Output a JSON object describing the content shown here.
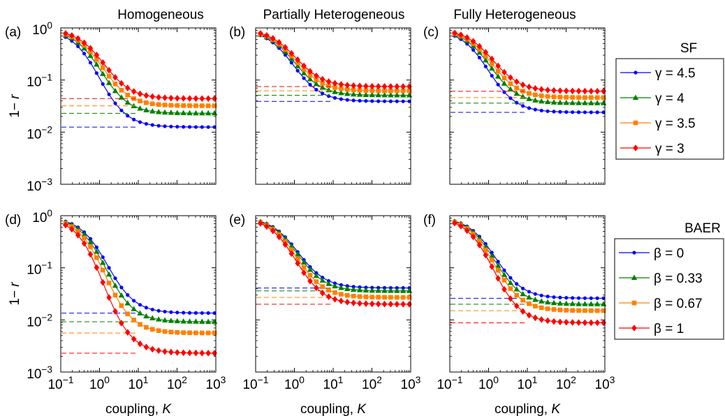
{
  "figure": {
    "column_titles": [
      "Homogeneous",
      "Partially Heterogeneous",
      "Fully Heterogeneous"
    ],
    "ylabel_prefix": "1− ",
    "ylabel_var": "r",
    "xlabel_prefix": "coupling, ",
    "xlabel_var": "K"
  },
  "legends": [
    {
      "title": "SF",
      "symbol": "γ",
      "entries": [
        {
          "label": "= 4.5",
          "color": "#0000ff",
          "marker": "dot"
        },
        {
          "label": "= 4",
          "color": "#008000",
          "marker": "triangle"
        },
        {
          "label": "= 3.5",
          "color": "#ff8000",
          "marker": "square"
        },
        {
          "label": "= 3",
          "color": "#ff0000",
          "marker": "diamond"
        }
      ]
    },
    {
      "title": "BAER",
      "symbol": "β",
      "entries": [
        {
          "label": "= 0",
          "color": "#0000ff",
          "marker": "dot"
        },
        {
          "label": "= 0.33",
          "color": "#008000",
          "marker": "triangle"
        },
        {
          "label": "= 0.67",
          "color": "#ff8000",
          "marker": "square"
        },
        {
          "label": "= 1",
          "color": "#ff0000",
          "marker": "diamond"
        }
      ]
    }
  ],
  "chart_data": [
    {
      "type": "line",
      "panel_label": "(a)",
      "xscale": "log",
      "yscale": "log",
      "xlim": [
        0.1,
        1000
      ],
      "ylim": [
        0.001,
        1
      ],
      "series": [
        {
          "name": "γ = 4.5",
          "color": "#0000ff",
          "marker": "dot",
          "midpoint": 1.0,
          "plateau": 0.0125
        },
        {
          "name": "γ = 4",
          "color": "#008000",
          "marker": "triangle",
          "midpoint": 1.1,
          "plateau": 0.023
        },
        {
          "name": "γ = 3.5",
          "color": "#ff8000",
          "marker": "square",
          "midpoint": 1.2,
          "plateau": 0.032
        },
        {
          "name": "γ = 3",
          "color": "#ff0000",
          "marker": "diamond",
          "midpoint": 1.3,
          "plateau": 0.044
        }
      ]
    },
    {
      "type": "line",
      "panel_label": "(b)",
      "xscale": "log",
      "yscale": "log",
      "xlim": [
        0.1,
        1000
      ],
      "ylim": [
        0.001,
        1
      ],
      "series": [
        {
          "name": "γ = 4.5",
          "color": "#0000ff",
          "marker": "dot",
          "midpoint": 0.95,
          "plateau": 0.039
        },
        {
          "name": "γ = 4",
          "color": "#008000",
          "marker": "triangle",
          "midpoint": 1.0,
          "plateau": 0.051
        },
        {
          "name": "γ = 3.5",
          "color": "#ff8000",
          "marker": "square",
          "midpoint": 1.05,
          "plateau": 0.062
        },
        {
          "name": "γ = 3",
          "color": "#ff0000",
          "marker": "diamond",
          "midpoint": 1.1,
          "plateau": 0.075
        }
      ]
    },
    {
      "type": "line",
      "panel_label": "(c)",
      "xscale": "log",
      "yscale": "log",
      "xlim": [
        0.1,
        1000
      ],
      "ylim": [
        0.001,
        1
      ],
      "series": [
        {
          "name": "γ = 4.5",
          "color": "#0000ff",
          "marker": "dot",
          "midpoint": 1.0,
          "plateau": 0.024
        },
        {
          "name": "γ = 4",
          "color": "#008000",
          "marker": "triangle",
          "midpoint": 1.1,
          "plateau": 0.036
        },
        {
          "name": "γ = 3.5",
          "color": "#ff8000",
          "marker": "square",
          "midpoint": 1.2,
          "plateau": 0.046
        },
        {
          "name": "γ = 3",
          "color": "#ff0000",
          "marker": "diamond",
          "midpoint": 1.3,
          "plateau": 0.061
        }
      ]
    },
    {
      "type": "line",
      "panel_label": "(d)",
      "xscale": "log",
      "yscale": "log",
      "xlim": [
        0.1,
        1000
      ],
      "ylim": [
        0.001,
        1
      ],
      "series": [
        {
          "name": "β = 0",
          "color": "#0000ff",
          "marker": "dot",
          "midpoint": 1.6,
          "plateau": 0.0135
        },
        {
          "name": "β = 0.33",
          "color": "#008000",
          "marker": "triangle",
          "midpoint": 1.5,
          "plateau": 0.0092
        },
        {
          "name": "β = 0.67",
          "color": "#ff8000",
          "marker": "square",
          "midpoint": 1.4,
          "plateau": 0.0056
        },
        {
          "name": "β = 1",
          "color": "#ff0000",
          "marker": "diamond",
          "midpoint": 1.3,
          "plateau": 0.0023
        }
      ]
    },
    {
      "type": "line",
      "panel_label": "(e)",
      "xscale": "log",
      "yscale": "log",
      "xlim": [
        0.1,
        1000
      ],
      "ylim": [
        0.001,
        1
      ],
      "series": [
        {
          "name": "β = 0",
          "color": "#0000ff",
          "marker": "dot",
          "midpoint": 1.25,
          "plateau": 0.041
        },
        {
          "name": "β = 0.33",
          "color": "#008000",
          "marker": "triangle",
          "midpoint": 1.2,
          "plateau": 0.036
        },
        {
          "name": "β = 0.67",
          "color": "#ff8000",
          "marker": "square",
          "midpoint": 1.15,
          "plateau": 0.027
        },
        {
          "name": "β = 1",
          "color": "#ff0000",
          "marker": "diamond",
          "midpoint": 1.1,
          "plateau": 0.02
        }
      ]
    },
    {
      "type": "line",
      "panel_label": "(f)",
      "xscale": "log",
      "yscale": "log",
      "xlim": [
        0.1,
        1000
      ],
      "ylim": [
        0.001,
        1
      ],
      "series": [
        {
          "name": "β = 0",
          "color": "#0000ff",
          "marker": "dot",
          "midpoint": 1.5,
          "plateau": 0.026
        },
        {
          "name": "β = 0.33",
          "color": "#008000",
          "marker": "triangle",
          "midpoint": 1.45,
          "plateau": 0.02
        },
        {
          "name": "β = 0.67",
          "color": "#ff8000",
          "marker": "square",
          "midpoint": 1.4,
          "plateau": 0.015
        },
        {
          "name": "β = 1",
          "color": "#ff0000",
          "marker": "diamond",
          "midpoint": 1.35,
          "plateau": 0.0088
        }
      ]
    }
  ]
}
